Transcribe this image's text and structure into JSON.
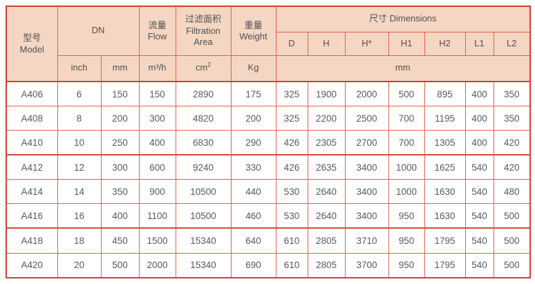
{
  "table": {
    "colors": {
      "header_bg": "#f5d6c3",
      "header_text": "#4f5052",
      "grid": "#e2604c",
      "outer": "#d2402e",
      "text": "#595959"
    },
    "header": {
      "model": {
        "zh": "型号",
        "en": "Model"
      },
      "dn": "DN",
      "flow": {
        "zh": "流量",
        "en": "Flow"
      },
      "filtration": {
        "zh": "过滤面积",
        "en": "Filtration Area"
      },
      "weight": {
        "zh": "重量",
        "en": "Weight"
      },
      "dimensions": "尺寸 Dimensions",
      "dim_columns": [
        "D",
        "H",
        "H*",
        "H1",
        "H2",
        "L1",
        "L2"
      ],
      "units": {
        "inch": "inch",
        "mm": "mm",
        "flow": "m³/h",
        "filtration_base": "cm",
        "filtration_sup": "2",
        "weight": "Kg",
        "dimensions": "mm"
      }
    },
    "rows": [
      [
        "A406",
        "6",
        "150",
        "150",
        "2890",
        "175",
        "325",
        "1900",
        "2000",
        "500",
        "895",
        "400",
        "350"
      ],
      [
        "A408",
        "8",
        "200",
        "300",
        "4820",
        "200",
        "325",
        "2200",
        "2500",
        "700",
        "1195",
        "400",
        "350"
      ],
      [
        "A410",
        "10",
        "250",
        "400",
        "6830",
        "290",
        "426",
        "2305",
        "2700",
        "700",
        "1305",
        "400",
        "420"
      ],
      [
        "A412",
        "12",
        "300",
        "600",
        "9240",
        "330",
        "426",
        "2635",
        "3400",
        "1000",
        "1625",
        "540",
        "420"
      ],
      [
        "A414",
        "14",
        "350",
        "900",
        "10500",
        "440",
        "530",
        "2640",
        "3400",
        "1000",
        "1630",
        "540",
        "480"
      ],
      [
        "A416",
        "16",
        "400",
        "1100",
        "10500",
        "460",
        "530",
        "2640",
        "3400",
        "950",
        "1630",
        "540",
        "500"
      ],
      [
        "A418",
        "18",
        "450",
        "1500",
        "15340",
        "640",
        "610",
        "2805",
        "3710",
        "950",
        "1795",
        "540",
        "500"
      ],
      [
        "A420",
        "20",
        "500",
        "2000",
        "15340",
        "690",
        "610",
        "2805",
        "3700",
        "950",
        "1795",
        "540",
        "500"
      ]
    ]
  }
}
